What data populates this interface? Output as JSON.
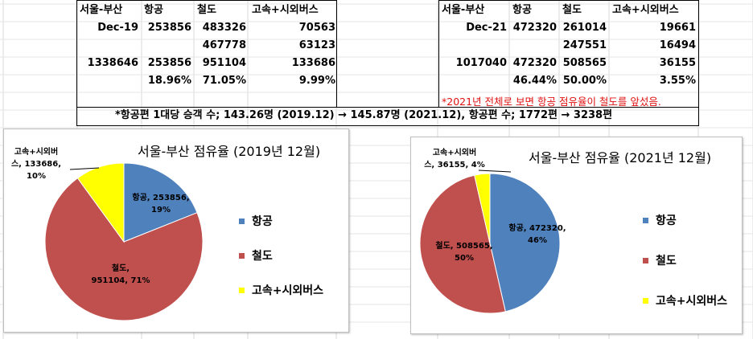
{
  "table_left": {
    "headers": [
      "서울-부산",
      "항공",
      "철도",
      "고속+시외버스"
    ],
    "rows": [
      [
        "Dec-19",
        "253856",
        "483326",
        "70563"
      ],
      [
        "",
        "",
        "467778",
        "63123"
      ],
      [
        "1338646",
        "253856",
        "951104",
        "133686"
      ],
      [
        "",
        "18.96%",
        "71.05%",
        "9.99%"
      ]
    ]
  },
  "table_right": {
    "headers": [
      "서울-부산",
      "항공",
      "철도",
      "고속+시외버스"
    ],
    "rows": [
      [
        "Dec-21",
        "472320",
        "261014",
        "19661"
      ],
      [
        "",
        "",
        "247551",
        "16494"
      ],
      [
        "1017040",
        "472320",
        "508565",
        "36155"
      ],
      [
        "",
        "46.44%",
        "50.00%",
        "3.55%"
      ]
    ],
    "note_red": "*2021년 전체로 보면 항공 점유율이 철도를 앞섰음."
  },
  "summary_note": "*항공편 1대당 승객 수; 143.26명 (2019.12) → 145.87명 (2021.12), 항공편 수; 1772편 → 3238편",
  "chart_data": [
    {
      "type": "pie",
      "title": "서울-부산 점유율 (2019년 12월)",
      "categories": [
        "항공",
        "철도",
        "고속+시외버스"
      ],
      "values": [
        253856,
        951104,
        133686
      ],
      "percent_labels": [
        "19%",
        "71%",
        "10%"
      ],
      "data_labels": [
        "항공, 253856, 19%",
        "철도, 951104, 71%",
        "고속+시외버스, 133686, 10%"
      ],
      "colors": [
        "#4f81bd",
        "#c0504d",
        "#ffff00"
      ],
      "legend_position": "right"
    },
    {
      "type": "pie",
      "title": "서울-부산 점유율 (2021년 12월)",
      "categories": [
        "항공",
        "철도",
        "고속+시외버스"
      ],
      "values": [
        472320,
        508565,
        36155
      ],
      "percent_labels": [
        "46%",
        "50%",
        "4%"
      ],
      "data_labels": [
        "항공, 472320, 46%",
        "철도, 508565, 50%",
        "고속+시외버스, 36155, 4%"
      ],
      "colors": [
        "#4f81bd",
        "#c0504d",
        "#ffff00"
      ],
      "legend_position": "right"
    }
  ]
}
